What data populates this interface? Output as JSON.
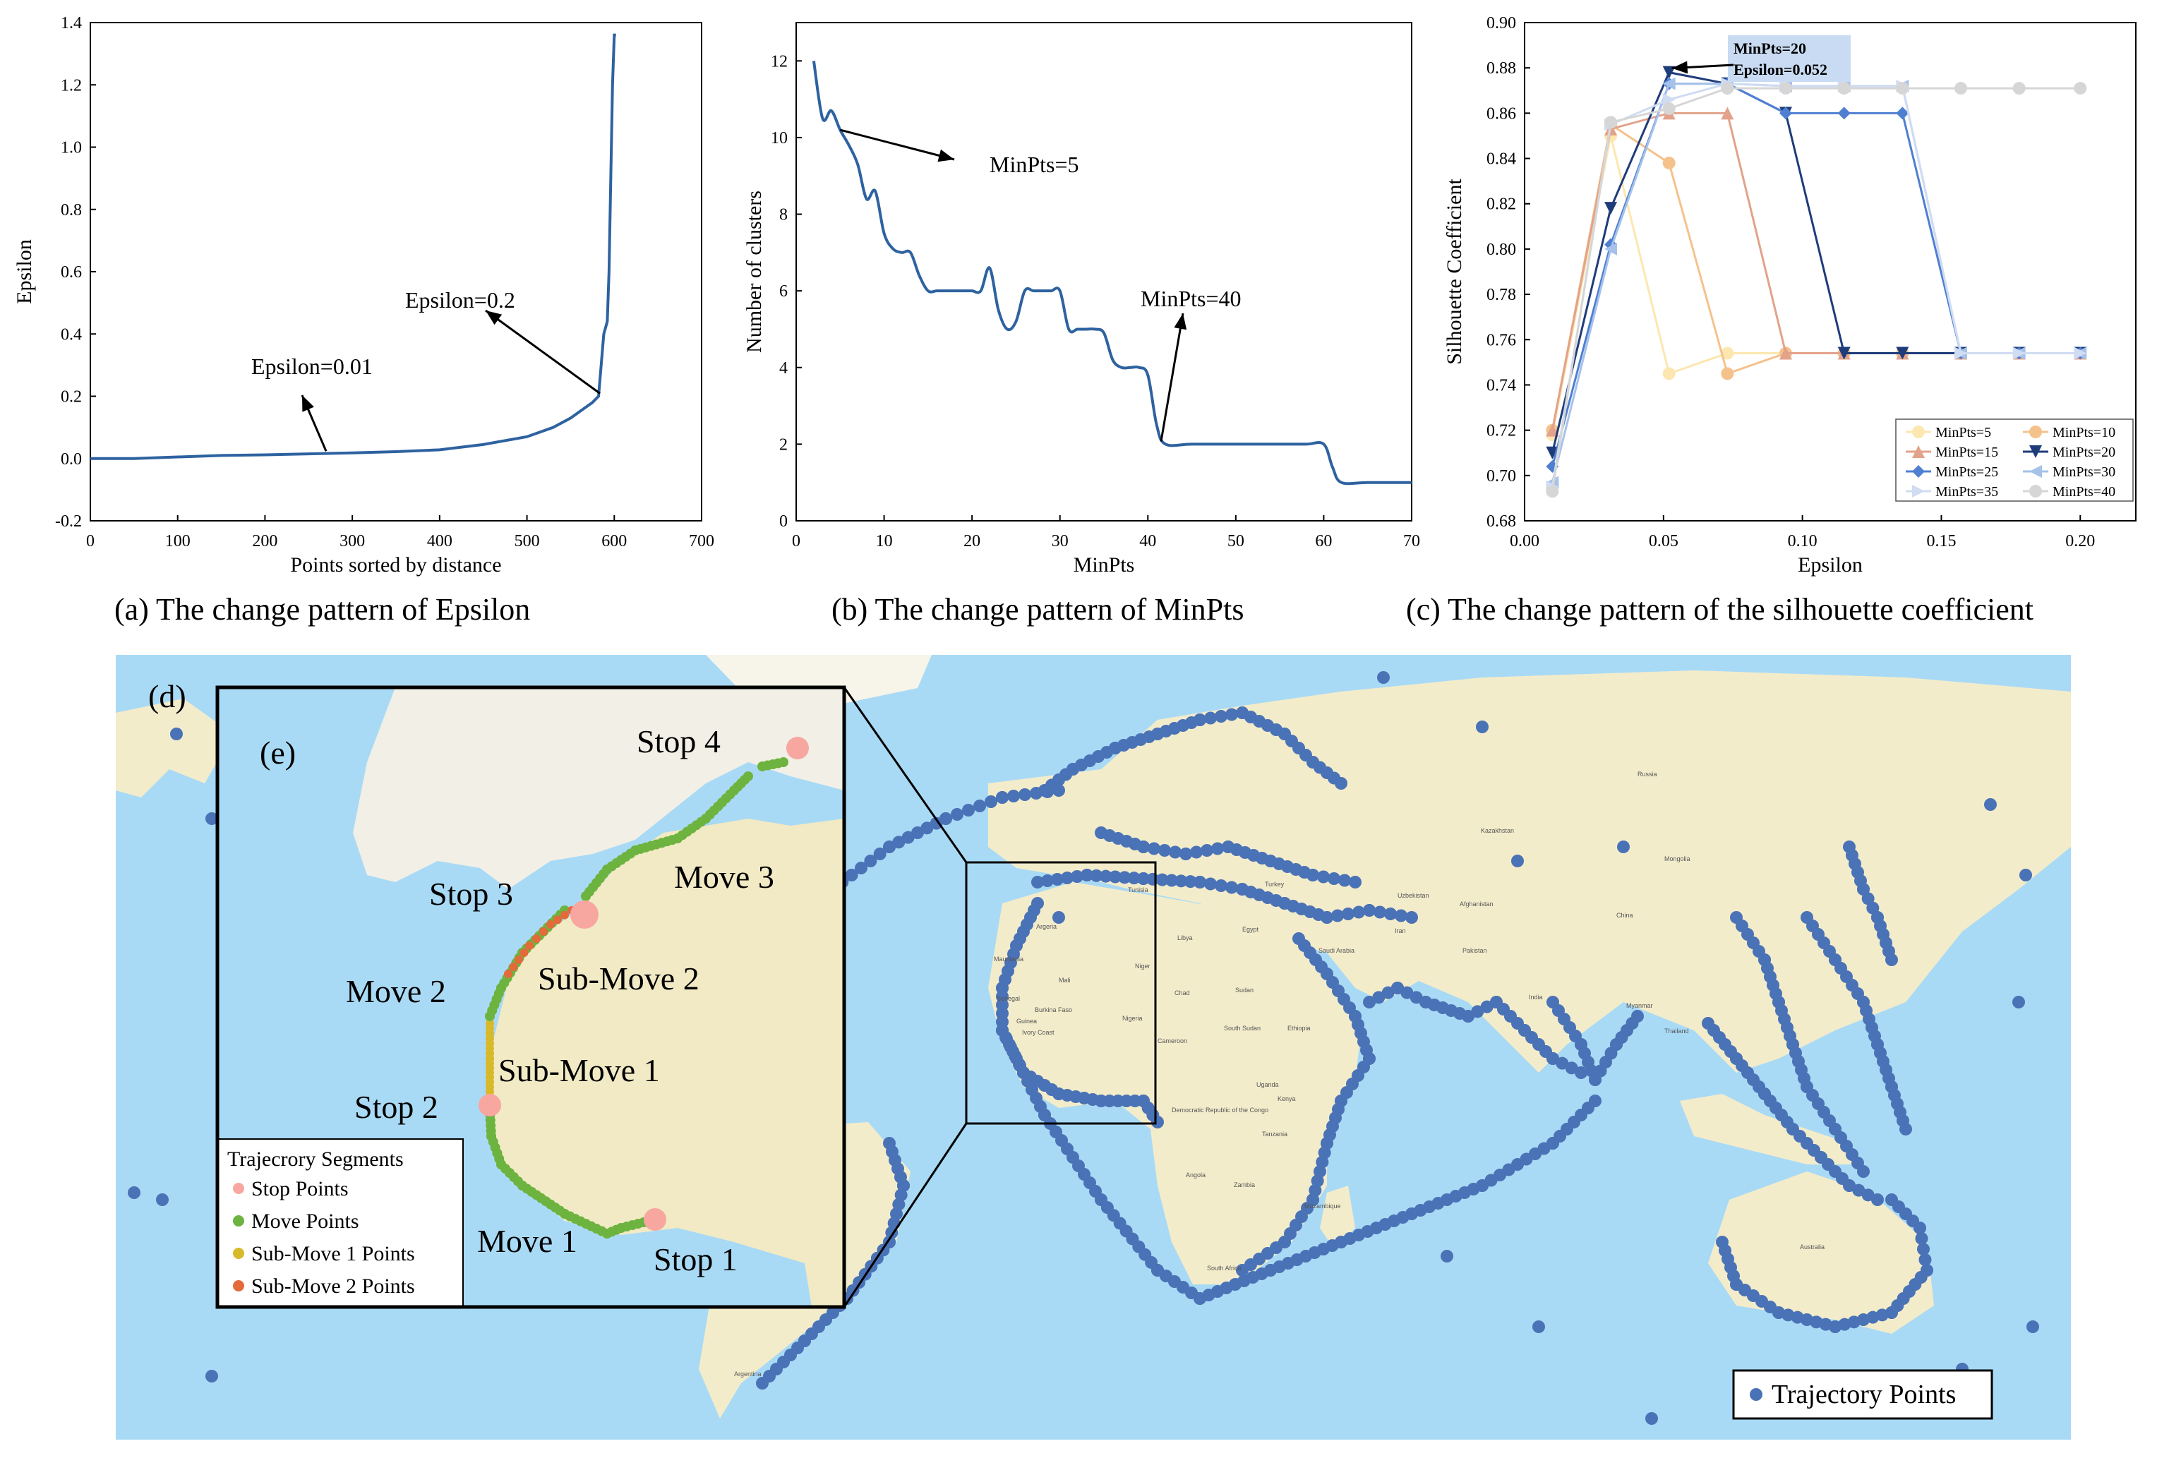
{
  "colors": {
    "main_line": "#2e62a0",
    "ocean": "#a9daf5",
    "land": "#f3eccb",
    "traj": "#4a72b6",
    "stop": "#f8a7a0",
    "move": "#6db33f",
    "sub1": "#d8b92a",
    "sub2": "#e26a3b"
  },
  "captions": {
    "a": "(a) The change pattern of Epsilon",
    "b": "(b) The change pattern of MinPts",
    "c": "(c) The change pattern of the silhouette coefficient"
  },
  "chart_data": [
    {
      "id": "a",
      "type": "line",
      "xlabel": "Points sorted by distance",
      "ylabel": "Epsilon",
      "xlim": [
        0,
        700
      ],
      "ylim": [
        -0.2,
        1.4
      ],
      "xticks": [
        0,
        100,
        200,
        300,
        400,
        500,
        600,
        700
      ],
      "yticks": [
        -0.2,
        0.0,
        0.2,
        0.4,
        0.6,
        0.8,
        1.0,
        1.2,
        1.4
      ],
      "x": [
        0,
        50,
        100,
        150,
        200,
        250,
        300,
        350,
        400,
        450,
        500,
        530,
        550,
        565,
        575,
        582,
        585,
        588,
        590,
        592,
        594,
        596,
        598,
        600,
        602
      ],
      "y": [
        0.0,
        0.0,
        0.005,
        0.01,
        0.012,
        0.015,
        0.018,
        0.022,
        0.028,
        0.045,
        0.07,
        0.1,
        0.13,
        0.16,
        0.18,
        0.2,
        0.3,
        0.4,
        0.42,
        0.44,
        0.6,
        0.9,
        1.2,
        1.36,
        1.36
      ],
      "annotations": [
        {
          "text": "Epsilon=0.2",
          "x": 582,
          "y": 0.2
        },
        {
          "text": "Epsilon=0.01",
          "x": 270,
          "y": 0.01
        }
      ]
    },
    {
      "id": "b",
      "type": "line",
      "xlabel": "MinPts",
      "ylabel": "Number of clusters",
      "xlim": [
        0,
        70
      ],
      "ylim": [
        0,
        13
      ],
      "xticks": [
        0,
        10,
        20,
        30,
        40,
        50,
        60,
        70
      ],
      "yticks": [
        0,
        2,
        4,
        6,
        8,
        10,
        12
      ],
      "x": [
        2,
        3,
        4,
        5,
        6,
        7,
        8,
        9,
        10,
        11,
        12,
        13,
        14,
        15,
        16,
        17,
        18,
        19,
        20,
        21,
        22,
        23,
        24,
        25,
        26,
        27,
        28,
        29,
        30,
        31,
        32,
        33,
        34,
        35,
        36,
        37,
        38,
        39,
        40,
        41,
        42,
        45,
        50,
        55,
        58,
        60,
        61,
        62,
        65,
        70
      ],
      "y": [
        12,
        10.5,
        10.7,
        10.2,
        9.8,
        9.3,
        8.4,
        8.6,
        7.5,
        7.1,
        7.0,
        7.0,
        6.4,
        6.0,
        6.0,
        6.0,
        6.0,
        6.0,
        6.0,
        6.0,
        6.6,
        5.5,
        5.0,
        5.2,
        6.0,
        6.0,
        6.0,
        6.0,
        6.0,
        5.0,
        5.0,
        5.0,
        5.0,
        4.9,
        4.2,
        4.0,
        4.0,
        4.0,
        3.8,
        2.5,
        2.0,
        2.0,
        2.0,
        2.0,
        2.0,
        2.0,
        1.4,
        1.0,
        1.0,
        1.0
      ],
      "annotations": [
        {
          "text": "MinPts=5",
          "x": 5,
          "y": 10.2
        },
        {
          "text": "MinPts=40",
          "x": 41.5,
          "y": 2.0
        }
      ]
    },
    {
      "id": "c",
      "type": "line",
      "xlabel": "Epsilon",
      "ylabel": "Silhouette Coefficient",
      "xlim": [
        0.0,
        0.22
      ],
      "ylim": [
        0.68,
        0.9
      ],
      "xticks": [
        0.0,
        0.05,
        0.1,
        0.15,
        0.2
      ],
      "yticks": [
        0.68,
        0.7,
        0.72,
        0.74,
        0.76,
        0.78,
        0.8,
        0.82,
        0.84,
        0.86,
        0.88,
        0.9
      ],
      "x": [
        0.01,
        0.031,
        0.052,
        0.073,
        0.094,
        0.115,
        0.136,
        0.157,
        0.178,
        0.2
      ],
      "series": [
        {
          "name": "MinPts=5",
          "color": "#fce7b0",
          "marker": "circle",
          "values": [
            0.718,
            0.85,
            0.745,
            0.754,
            0.754,
            0.754,
            0.754,
            0.754,
            0.754,
            0.754
          ]
        },
        {
          "name": "MinPts=10",
          "color": "#f5c28c",
          "marker": "circle",
          "values": [
            0.72,
            0.855,
            0.838,
            0.745,
            0.754,
            0.754,
            0.754,
            0.754,
            0.754,
            0.754
          ]
        },
        {
          "name": "MinPts=15",
          "color": "#e3a28a",
          "marker": "triangle",
          "values": [
            0.72,
            0.853,
            0.86,
            0.86,
            0.754,
            0.754,
            0.754,
            0.754,
            0.754,
            0.754
          ]
        },
        {
          "name": "MinPts=20",
          "color": "#1f3c7a",
          "marker": "triangle-down",
          "values": [
            0.71,
            0.818,
            0.878,
            0.873,
            0.86,
            0.754,
            0.754,
            0.754,
            0.754,
            0.754
          ]
        },
        {
          "name": "MinPts=25",
          "color": "#4f7fd1",
          "marker": "diamond",
          "values": [
            0.704,
            0.802,
            0.873,
            0.873,
            0.86,
            0.86,
            0.86,
            0.754,
            0.754,
            0.754
          ]
        },
        {
          "name": "MinPts=30",
          "color": "#a6c2ea",
          "marker": "triangle-left",
          "values": [
            0.697,
            0.8,
            0.873,
            0.873,
            0.872,
            0.872,
            0.872,
            0.754,
            0.754,
            0.754
          ]
        },
        {
          "name": "MinPts=35",
          "color": "#cfdcf2",
          "marker": "triangle-right",
          "values": [
            0.695,
            0.855,
            0.866,
            0.873,
            0.872,
            0.872,
            0.872,
            0.754,
            0.754,
            0.754
          ]
        },
        {
          "name": "MinPts=40",
          "color": "#d6d6d6",
          "marker": "circle",
          "values": [
            0.693,
            0.856,
            0.862,
            0.871,
            0.871,
            0.871,
            0.871,
            0.871,
            0.871,
            0.871
          ]
        }
      ],
      "annotation": {
        "line1": "MinPts=20",
        "line2": "Epsilon=0.052",
        "x": 0.052,
        "y": 0.878
      },
      "legend_position": "bottom-right"
    }
  ],
  "map": {
    "label_d": "(d)",
    "label_e": "(e)",
    "stops": [
      "Stop 1",
      "Stop 2",
      "Stop 3",
      "Stop 4"
    ],
    "moves": [
      "Move 1",
      "Move 2",
      "Move 3"
    ],
    "submoves": [
      "Sub-Move 1",
      "Sub-Move 2"
    ],
    "inset_legend": {
      "title": "Trajecrory Segments",
      "items": [
        "Stop Points",
        "Move Points",
        "Sub-Move 1 Points",
        "Sub-Move 2 Points"
      ]
    },
    "main_legend": "Trajectory Points",
    "places": [
      "Argeria",
      "Mauritania",
      "Mali",
      "Niger",
      "Burkina Faso",
      "Nigeria",
      "Ivory Coast",
      "Guinea",
      "Cameroon",
      "Chad",
      "Sudan",
      "South Sudan",
      "Ethiopia",
      "Libya",
      "Egypt",
      "Saudi Arabia",
      "Iran",
      "Turkey",
      "Kenya",
      "Uganda",
      "Tanzania",
      "Angola",
      "Zambia",
      "Mozambique",
      "South Africa",
      "Democratic Republic of the Congo",
      "Kazakhstan",
      "Uzbekistan",
      "Afghanistan",
      "Pakistan",
      "India",
      "China",
      "Mongolia",
      "Russia",
      "Australia",
      "Myanmar",
      "Thailand",
      "Argentina",
      "Tunisia",
      "Senegal"
    ]
  }
}
